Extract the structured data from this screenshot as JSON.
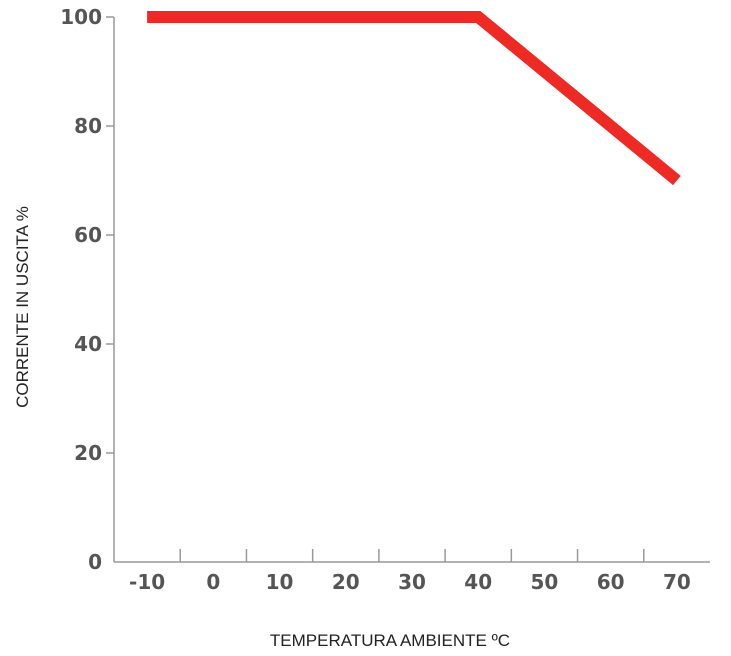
{
  "chart_data": {
    "type": "line",
    "title": "",
    "xlabel": "TEMPERATURA AMBIENTE ºC",
    "ylabel": "CORRENTE IN USCITA %",
    "x_ticks": [
      -10,
      0,
      10,
      20,
      30,
      40,
      50,
      60,
      70
    ],
    "y_ticks": [
      0,
      20,
      40,
      60,
      80,
      100
    ],
    "xlim": [
      -15,
      75
    ],
    "ylim": [
      0,
      100
    ],
    "grid": false,
    "series": [
      {
        "color": "#ee2a24",
        "points": [
          {
            "x": -10,
            "y": 100
          },
          {
            "x": 40,
            "y": 100
          },
          {
            "x": 70,
            "y": 70
          }
        ]
      }
    ]
  }
}
